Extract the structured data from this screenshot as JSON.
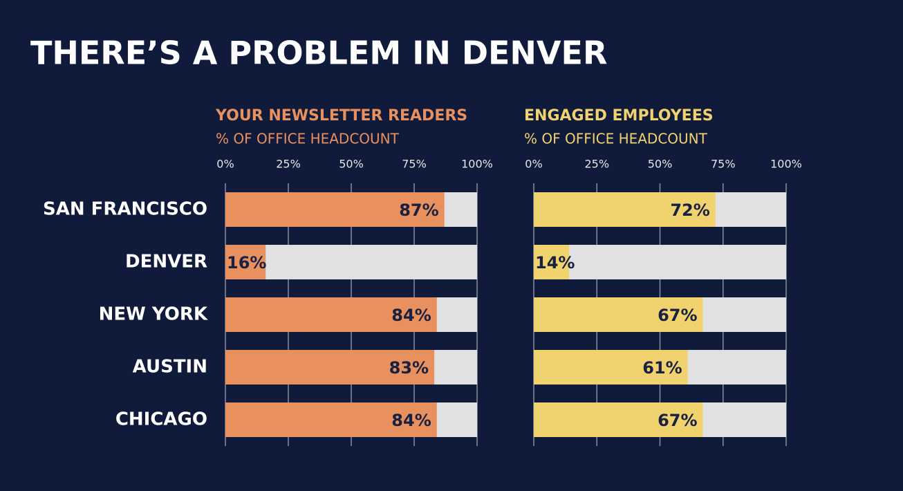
{
  "title": "THERE’S A PROBLEM IN DENVER",
  "chart_data": [
    {
      "type": "bar",
      "orientation": "horizontal",
      "title": "YOUR NEWSLETTER READERS",
      "subtitle": "% OF OFFICE HEADCOUNT",
      "categories": [
        "SAN FRANCISCO",
        "DENVER",
        "NEW YORK",
        "AUSTIN",
        "CHICAGO"
      ],
      "values": [
        87,
        16,
        84,
        83,
        84
      ],
      "value_labels": [
        "87%",
        "16%",
        "84%",
        "83%",
        "84%"
      ],
      "color": "#e8915f",
      "title_color": "#e8915f",
      "xlim": [
        0,
        100
      ],
      "xticks": [
        {
          "value": 0,
          "label": "0%"
        },
        {
          "value": 25,
          "label": "25%"
        },
        {
          "value": 50,
          "label": "50%"
        },
        {
          "value": 75,
          "label": "75%"
        },
        {
          "value": 100,
          "label": "100%"
        }
      ],
      "grid": true
    },
    {
      "type": "bar",
      "orientation": "horizontal",
      "title": "ENGAGED EMPLOYEES",
      "subtitle": "% OF OFFICE HEADCOUNT",
      "values": [
        72,
        14,
        67,
        61,
        67
      ],
      "value_labels": [
        "72%",
        "14%",
        "67%",
        "61%",
        "67%"
      ],
      "color": "#f0d26e",
      "title_color": "#f0d26e",
      "xlim": [
        0,
        100
      ],
      "xticks": [
        {
          "value": 0,
          "label": "0%"
        },
        {
          "value": 25,
          "label": "25%"
        },
        {
          "value": 50,
          "label": "50%"
        },
        {
          "value": 75,
          "label": "75%"
        },
        {
          "value": 100,
          "label": "100%"
        }
      ],
      "grid": true
    }
  ]
}
